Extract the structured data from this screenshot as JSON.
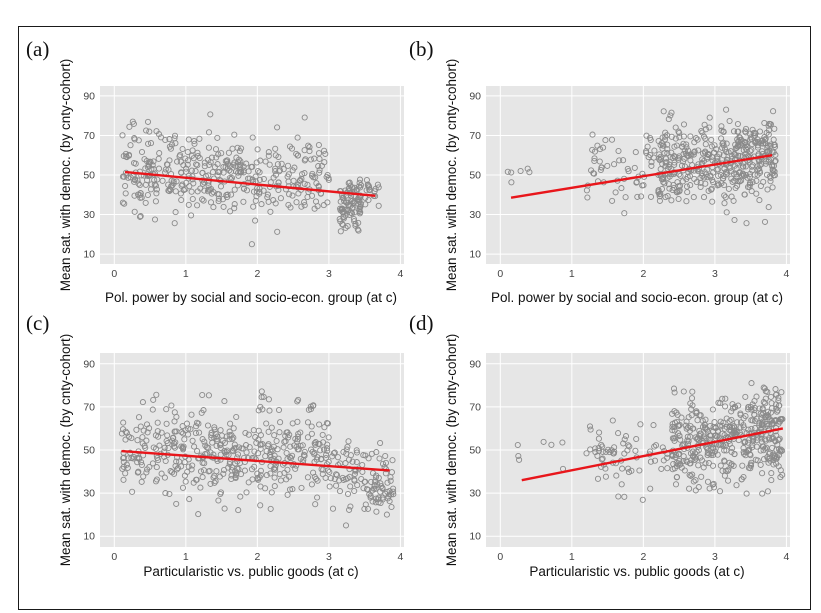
{
  "colors": {
    "panel_background": "#e6e6e6",
    "grid_major": "#ffffff",
    "point_stroke": "#8a8a8a",
    "trend_line": "#e8161b"
  },
  "chart_data": [
    {
      "type": "scatter",
      "panel_label": "(a)",
      "xlabel": "Pol. power by social and socio-econ. group (at c)",
      "ylabel": "Mean sat. with democ. (by cnty-cohort)",
      "xlim": [
        -0.2,
        4.05
      ],
      "ylim": [
        5,
        95
      ],
      "xticks": [
        0,
        1,
        2,
        3,
        4
      ],
      "yticks": [
        10,
        30,
        50,
        70,
        90
      ],
      "grid": true,
      "trend": {
        "x": [
          0.15,
          3.65
        ],
        "y": [
          51.5,
          39.5
        ]
      },
      "cloud": {
        "seed": 11,
        "x_range": [
          0.1,
          3.7
        ],
        "clusters": [
          {
            "x": [
              0.1,
              3.0
            ],
            "y_center": 48,
            "y_spread": 9,
            "count": 360
          },
          {
            "x": [
              0.2,
              1.8
            ],
            "y_center": 60,
            "y_spread": 9,
            "count": 60
          },
          {
            "x": [
              3.15,
              3.45
            ],
            "y_center": 32,
            "y_spread": 7,
            "count": 70
          },
          {
            "x": [
              3.15,
              3.7
            ],
            "y_center": 42,
            "y_spread": 3,
            "count": 40
          }
        ]
      }
    },
    {
      "type": "scatter",
      "panel_label": "(b)",
      "xlabel": "Pol. power by social and socio-econ. group  (at c)",
      "ylabel": "Mean sat. with democ. (by cnty-cohort)",
      "xlim": [
        -0.2,
        4.05
      ],
      "ylim": [
        5,
        95
      ],
      "xticks": [
        0,
        1,
        2,
        3,
        4
      ],
      "yticks": [
        10,
        30,
        50,
        70,
        90
      ],
      "grid": true,
      "trend": {
        "x": [
          0.15,
          3.8
        ],
        "y": [
          38.5,
          60
        ]
      },
      "cloud": {
        "seed": 23,
        "clusters": [
          {
            "x": [
              0.1,
              0.7
            ],
            "y_center": 51,
            "y_spread": 3,
            "count": 6
          },
          {
            "x": [
              1.2,
              2.2
            ],
            "y_center": 53,
            "y_spread": 10,
            "count": 60
          },
          {
            "x": [
              2.2,
              3.85
            ],
            "y_center": 55,
            "y_spread": 10,
            "count": 420
          },
          {
            "x": [
              3.3,
              3.85
            ],
            "y_center": 66,
            "y_spread": 4,
            "count": 40
          }
        ]
      }
    },
    {
      "type": "scatter",
      "panel_label": "(c)",
      "xlabel": "Particularistic vs. public goods (at c)",
      "ylabel": "Mean sat. with democ. (by cnty-cohort)",
      "xlim": [
        -0.2,
        4.05
      ],
      "ylim": [
        5,
        95
      ],
      "xticks": [
        0,
        1,
        2,
        3,
        4
      ],
      "yticks": [
        10,
        30,
        50,
        70,
        90
      ],
      "grid": true,
      "trend": {
        "x": [
          0.1,
          3.85
        ],
        "y": [
          49.5,
          40.5
        ]
      },
      "cloud": {
        "seed": 37,
        "clusters": [
          {
            "x": [
              0.1,
              3.0
            ],
            "y_center": 47,
            "y_spread": 9,
            "count": 380
          },
          {
            "x": [
              0.3,
              2.8
            ],
            "y_center": 62,
            "y_spread": 8,
            "count": 70
          },
          {
            "x": [
              3.0,
              3.9
            ],
            "y_center": 38,
            "y_spread": 8,
            "count": 90
          },
          {
            "x": [
              3.5,
              3.9
            ],
            "y_center": 30,
            "y_spread": 4,
            "count": 30
          }
        ]
      }
    },
    {
      "type": "scatter",
      "panel_label": "(d)",
      "xlabel": "Particularistic vs. public goods (at c)",
      "ylabel": "Mean sat. with democ. (by cnty-cohort)",
      "xlim": [
        -0.2,
        4.05
      ],
      "ylim": [
        5,
        95
      ],
      "xticks": [
        0,
        1,
        2,
        3,
        4
      ],
      "yticks": [
        10,
        30,
        50,
        70,
        90
      ],
      "grid": true,
      "trend": {
        "x": [
          0.3,
          3.95
        ],
        "y": [
          36,
          60
        ]
      },
      "cloud": {
        "seed": 53,
        "clusters": [
          {
            "x": [
              0.2,
              0.9
            ],
            "y_center": 50,
            "y_spread": 4,
            "count": 7
          },
          {
            "x": [
              1.2,
              2.4
            ],
            "y_center": 47,
            "y_spread": 7,
            "count": 70
          },
          {
            "x": [
              2.4,
              3.95
            ],
            "y_center": 54,
            "y_spread": 10,
            "count": 420
          },
          {
            "x": [
              3.5,
              3.95
            ],
            "y_center": 68,
            "y_spread": 5,
            "count": 40
          }
        ]
      }
    }
  ]
}
